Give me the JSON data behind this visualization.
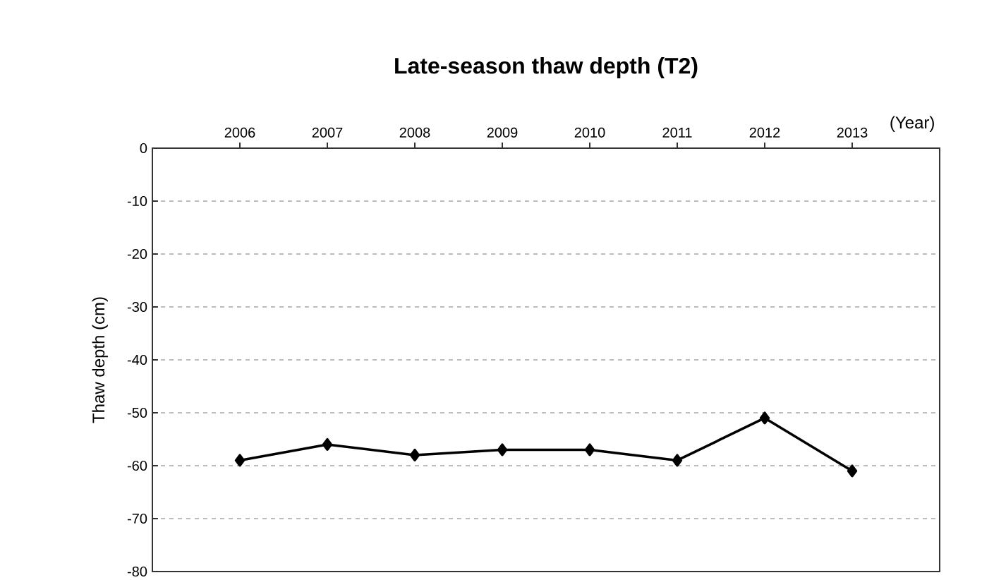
{
  "chart_data": {
    "type": "line",
    "title": "Late-season thaw depth (T2)",
    "xlabel": "(Year)",
    "ylabel": "Thaw depth (cm)",
    "categories": [
      "2006",
      "2007",
      "2008",
      "2009",
      "2010",
      "2011",
      "2012",
      "2013"
    ],
    "series": [
      {
        "color": "#000000",
        "values": [
          -59,
          -56,
          -58,
          -57,
          -57,
          -59,
          -51,
          -61
        ]
      }
    ],
    "ylim": [
      -80,
      0
    ],
    "yticks": [
      0,
      -10,
      -20,
      -30,
      -40,
      -50,
      -60,
      -70,
      -80
    ],
    "grid": "y",
    "marker": "diamond",
    "line_style": "solid"
  }
}
